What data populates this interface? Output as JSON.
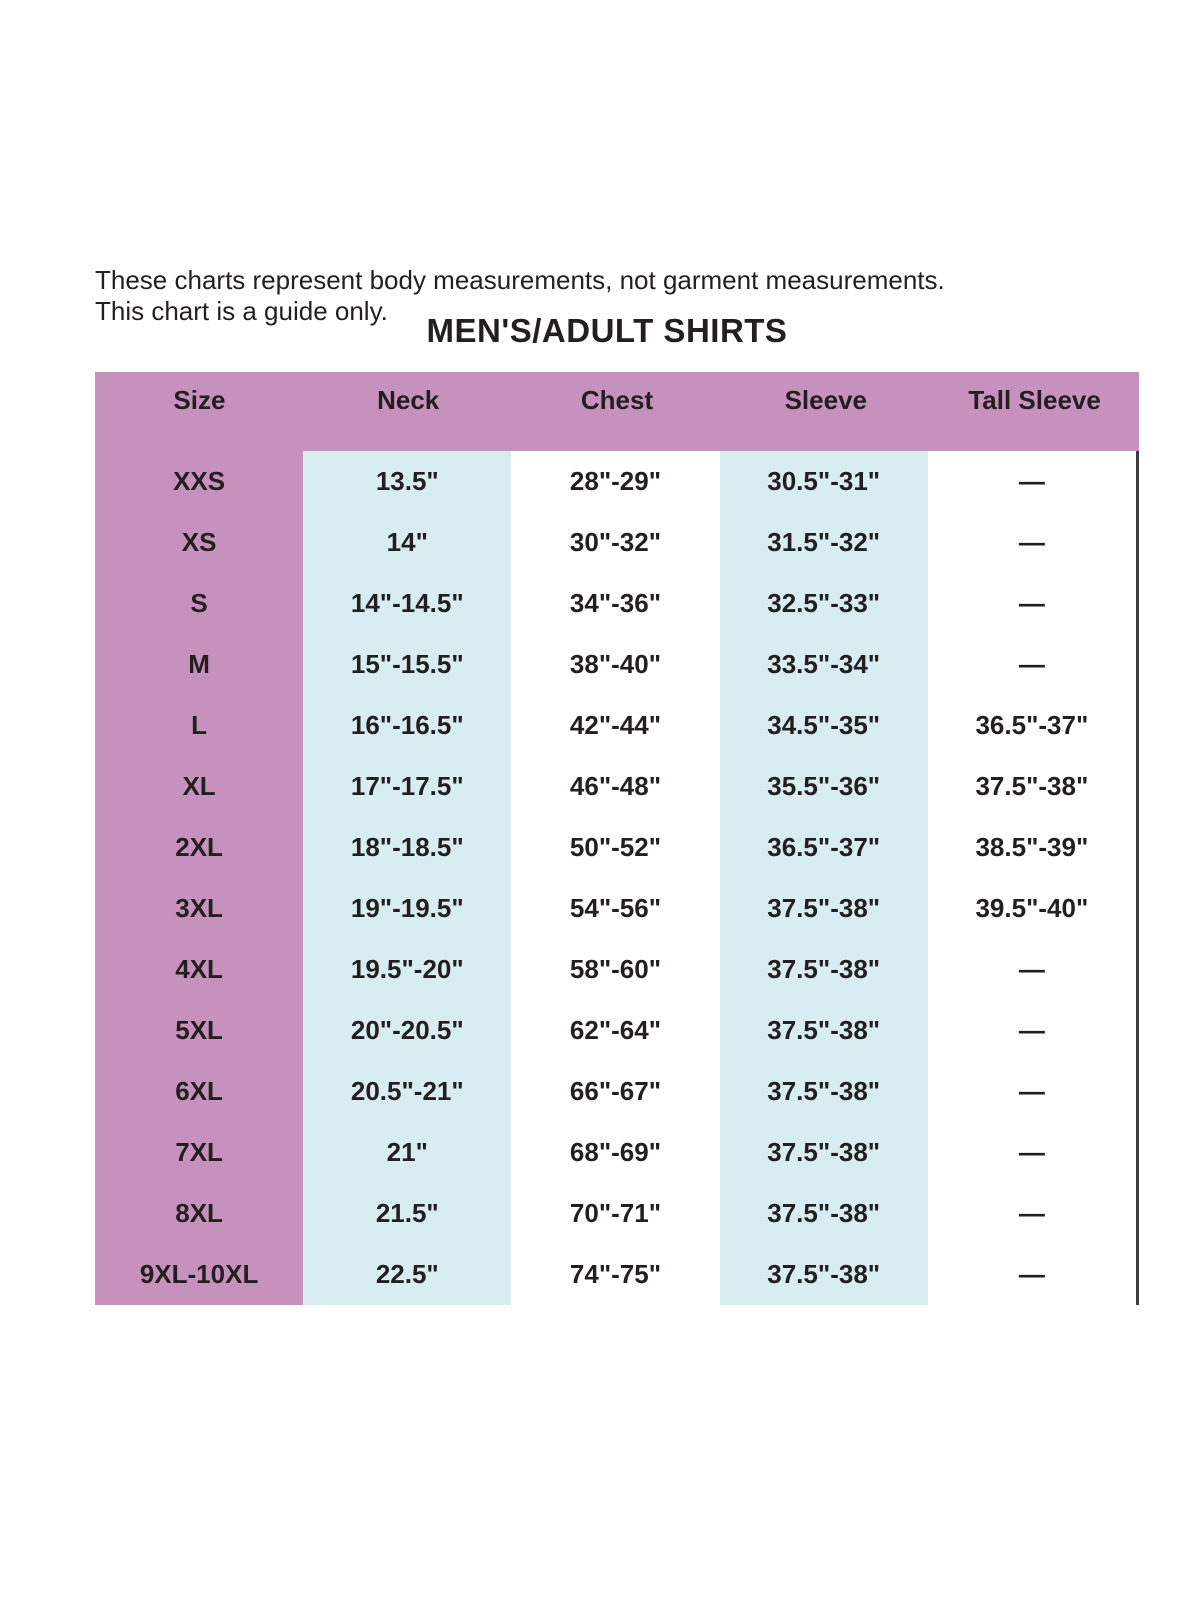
{
  "note": {
    "line1": "These charts represent body measurements, not garment measurements.",
    "line2": "This chart is a guide only."
  },
  "chart_data": {
    "type": "table",
    "title": "MEN'S/ADULT SHIRTS",
    "columns": [
      "Size",
      "Neck",
      "Chest",
      "Sleeve",
      "Tall Sleeve"
    ],
    "rows": [
      [
        "XXS",
        "13.5\"",
        "28\"-29\"",
        "30.5\"-31\"",
        "—"
      ],
      [
        "XS",
        "14\"",
        "30\"-32\"",
        "31.5\"-32\"",
        "—"
      ],
      [
        "S",
        "14\"-14.5\"",
        "34\"-36\"",
        "32.5\"-33\"",
        "—"
      ],
      [
        "M",
        "15\"-15.5\"",
        "38\"-40\"",
        "33.5\"-34\"",
        "—"
      ],
      [
        "L",
        "16\"-16.5\"",
        "42\"-44\"",
        "34.5\"-35\"",
        "36.5\"-37\""
      ],
      [
        "XL",
        "17\"-17.5\"",
        "46\"-48\"",
        "35.5\"-36\"",
        "37.5\"-38\""
      ],
      [
        "2XL",
        "18\"-18.5\"",
        "50\"-52\"",
        "36.5\"-37\"",
        "38.5\"-39\""
      ],
      [
        "3XL",
        "19\"-19.5\"",
        "54\"-56\"",
        "37.5\"-38\"",
        "39.5\"-40\""
      ],
      [
        "4XL",
        "19.5\"-20\"",
        "58\"-60\"",
        "37.5\"-38\"",
        "—"
      ],
      [
        "5XL",
        "20\"-20.5\"",
        "62\"-64\"",
        "37.5\"-38\"",
        "—"
      ],
      [
        "6XL",
        "20.5\"-21\"",
        "66\"-67\"",
        "37.5\"-38\"",
        "—"
      ],
      [
        "7XL",
        "21\"",
        "68\"-69\"",
        "37.5\"-38\"",
        "—"
      ],
      [
        "8XL",
        "21.5\"",
        "70\"-71\"",
        "37.5\"-38\"",
        "—"
      ],
      [
        "9XL-10XL",
        "22.5\"",
        "74\"-75\"",
        "37.5\"-38\"",
        "—"
      ]
    ]
  },
  "colors": {
    "header_pink": "#c791bd",
    "stripe_blue": "#d7edf2",
    "text_dark": "#231f20",
    "right_rule": "#3d3d3d"
  }
}
